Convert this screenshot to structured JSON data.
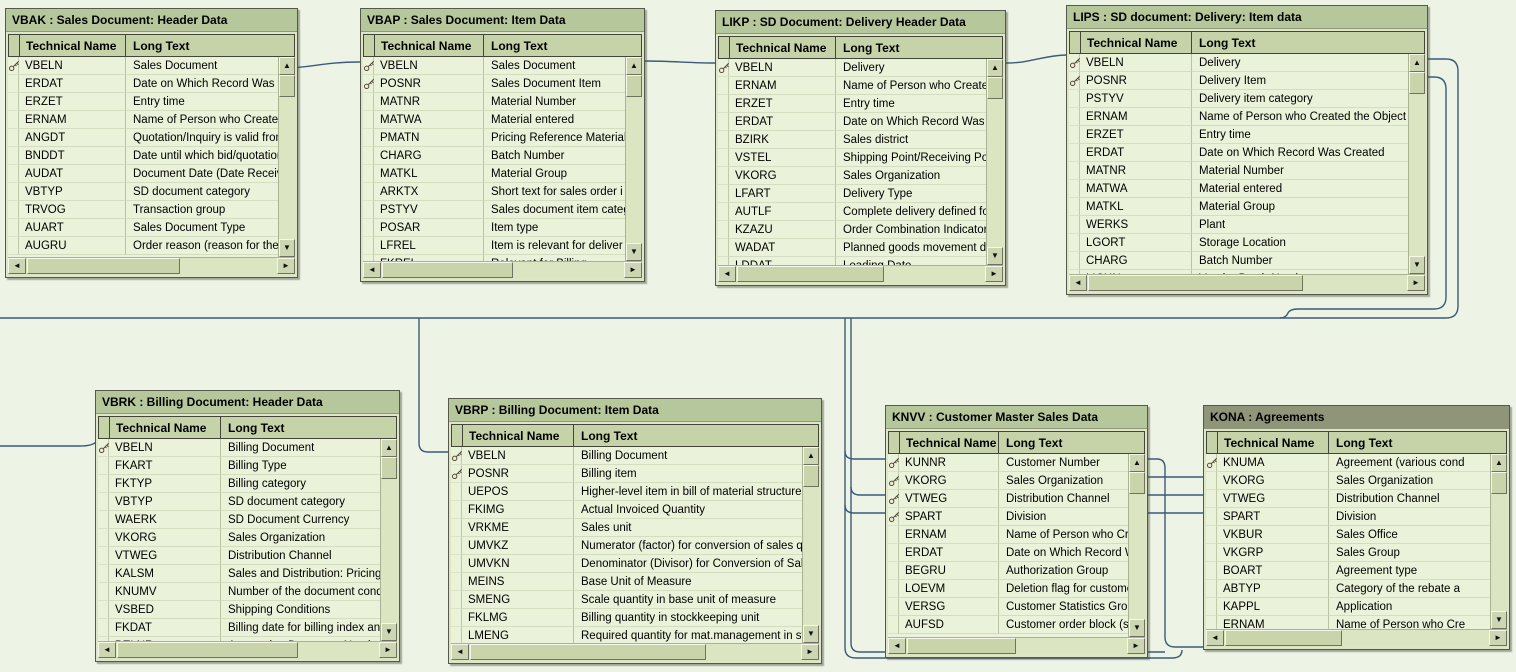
{
  "app": {
    "background": "#edf4e6",
    "wire_color": "#3c5a7a",
    "title_bar_color": "#b6c79b",
    "active_title_bar_color": "#8e9579"
  },
  "tables": [
    {
      "id": "VBAK",
      "title": "VBAK : Sales Document: Header Data",
      "columns": [
        "Technical Name",
        "Long Text"
      ],
      "rows": [
        {
          "name": "VBELN",
          "text": "Sales Document",
          "key": true
        },
        {
          "name": "ERDAT",
          "text": "Date on Which Record Was Cre",
          "key": false
        },
        {
          "name": "ERZET",
          "text": "Entry time",
          "key": false
        },
        {
          "name": "ERNAM",
          "text": "Name of Person who Created t",
          "key": false
        },
        {
          "name": "ANGDT",
          "text": "Quotation/Inquiry is valid from",
          "key": false
        },
        {
          "name": "BNDDT",
          "text": "Date until which bid/quotation i",
          "key": false
        },
        {
          "name": "AUDAT",
          "text": "Document Date (Date Received",
          "key": false
        },
        {
          "name": "VBTYP",
          "text": "SD document category",
          "key": false
        },
        {
          "name": "TRVOG",
          "text": "Transaction group",
          "key": false
        },
        {
          "name": "AUART",
          "text": "Sales Document Type",
          "key": false
        },
        {
          "name": "AUGRU",
          "text": "Order reason (reason for the b",
          "key": false
        }
      ]
    },
    {
      "id": "VBAP",
      "title": "VBAP : Sales Document: Item Data",
      "columns": [
        "Technical Name",
        "Long Text"
      ],
      "rows": [
        {
          "name": "VBELN",
          "text": "Sales Document",
          "key": true
        },
        {
          "name": "POSNR",
          "text": "Sales Document Item",
          "key": true
        },
        {
          "name": "MATNR",
          "text": "Material Number",
          "key": false
        },
        {
          "name": "MATWA",
          "text": "Material entered",
          "key": false
        },
        {
          "name": "PMATN",
          "text": "Pricing Reference Material",
          "key": false
        },
        {
          "name": "CHARG",
          "text": "Batch Number",
          "key": false
        },
        {
          "name": "MATKL",
          "text": "Material Group",
          "key": false
        },
        {
          "name": "ARKTX",
          "text": "Short text for sales order i",
          "key": false
        },
        {
          "name": "PSTYV",
          "text": "Sales document item categ",
          "key": false
        },
        {
          "name": "POSAR",
          "text": "Item type",
          "key": false
        },
        {
          "name": "LFREL",
          "text": "Item is relevant for deliver",
          "key": false
        },
        {
          "name": "FKREL",
          "text": "Relevant for Billing",
          "key": false
        }
      ]
    },
    {
      "id": "LIKP",
      "title": "LIKP : SD Document: Delivery Header Data",
      "columns": [
        "Technical Name",
        "Long Text"
      ],
      "rows": [
        {
          "name": "VBELN",
          "text": "Delivery",
          "key": true
        },
        {
          "name": "ERNAM",
          "text": "Name of Person who Created the",
          "key": false
        },
        {
          "name": "ERZET",
          "text": "Entry time",
          "key": false
        },
        {
          "name": "ERDAT",
          "text": "Date on Which Record Was Crea",
          "key": false
        },
        {
          "name": "BZIRK",
          "text": "Sales district",
          "key": false
        },
        {
          "name": "VSTEL",
          "text": "Shipping Point/Receiving Point",
          "key": false
        },
        {
          "name": "VKORG",
          "text": "Sales Organization",
          "key": false
        },
        {
          "name": "LFART",
          "text": "Delivery Type",
          "key": false
        },
        {
          "name": "AUTLF",
          "text": "Complete delivery defined for ea",
          "key": false
        },
        {
          "name": "KZAZU",
          "text": "Order Combination Indicator",
          "key": false
        },
        {
          "name": "WADAT",
          "text": "Planned goods movement date",
          "key": false
        },
        {
          "name": "LDDAT",
          "text": "Loading Date",
          "key": false
        }
      ]
    },
    {
      "id": "LIPS",
      "title": "LIPS : SD document: Delivery: Item data",
      "columns": [
        "Technical Name",
        "Long Text"
      ],
      "rows": [
        {
          "name": "VBELN",
          "text": "Delivery",
          "key": true
        },
        {
          "name": "POSNR",
          "text": "Delivery Item",
          "key": true
        },
        {
          "name": "PSTYV",
          "text": "Delivery item category",
          "key": false
        },
        {
          "name": "ERNAM",
          "text": "Name of Person who Created the Object",
          "key": false
        },
        {
          "name": "ERZET",
          "text": "Entry time",
          "key": false
        },
        {
          "name": "ERDAT",
          "text": "Date on Which Record Was Created",
          "key": false
        },
        {
          "name": "MATNR",
          "text": "Material Number",
          "key": false
        },
        {
          "name": "MATWA",
          "text": "Material entered",
          "key": false
        },
        {
          "name": "MATKL",
          "text": "Material Group",
          "key": false
        },
        {
          "name": "WERKS",
          "text": "Plant",
          "key": false
        },
        {
          "name": "LGORT",
          "text": "Storage Location",
          "key": false
        },
        {
          "name": "CHARG",
          "text": "Batch Number",
          "key": false
        },
        {
          "name": "LICHN",
          "text": "Vendor Batch Number",
          "key": false
        }
      ]
    },
    {
      "id": "VBRK",
      "title": "VBRK : Billing Document: Header Data",
      "columns": [
        "Technical Name",
        "Long Text"
      ],
      "rows": [
        {
          "name": "VBELN",
          "text": "Billing Document",
          "key": true
        },
        {
          "name": "FKART",
          "text": "Billing Type",
          "key": false
        },
        {
          "name": "FKTYP",
          "text": "Billing category",
          "key": false
        },
        {
          "name": "VBTYP",
          "text": "SD document category",
          "key": false
        },
        {
          "name": "WAERK",
          "text": "SD Document Currency",
          "key": false
        },
        {
          "name": "VKORG",
          "text": "Sales Organization",
          "key": false
        },
        {
          "name": "VTWEG",
          "text": "Distribution Channel",
          "key": false
        },
        {
          "name": "KALSM",
          "text": "Sales and Distribution: Pricing Procedure in Pricin",
          "key": false
        },
        {
          "name": "KNUMV",
          "text": "Number of the document condition",
          "key": false
        },
        {
          "name": "VSBED",
          "text": "Shipping Conditions",
          "key": false
        },
        {
          "name": "FKDAT",
          "text": "Billing date for billing index and printout",
          "key": false
        },
        {
          "name": "BELNR",
          "text": "Accounting Document Number",
          "key": false
        }
      ]
    },
    {
      "id": "VBRP",
      "title": "VBRP : Billing Document: Item Data",
      "columns": [
        "Technical Name",
        "Long Text"
      ],
      "rows": [
        {
          "name": "VBELN",
          "text": "Billing Document",
          "key": true
        },
        {
          "name": "POSNR",
          "text": "Billing item",
          "key": true
        },
        {
          "name": "UEPOS",
          "text": "Higher-level item in bill of material structures",
          "key": false
        },
        {
          "name": "FKIMG",
          "text": "Actual Invoiced Quantity",
          "key": false
        },
        {
          "name": "VRKME",
          "text": "Sales unit",
          "key": false
        },
        {
          "name": "UMVKZ",
          "text": "Numerator (factor) for conversion of sales qua",
          "key": false
        },
        {
          "name": "UMVKN",
          "text": "Denominator (Divisor) for Conversion of Sales (",
          "key": false
        },
        {
          "name": "MEINS",
          "text": "Base Unit of Measure",
          "key": false
        },
        {
          "name": "SMENG",
          "text": "Scale quantity in base unit of measure",
          "key": false
        },
        {
          "name": "FKLMG",
          "text": "Billing quantity in stockkeeping unit",
          "key": false
        },
        {
          "name": "LMENG",
          "text": "Required quantity for mat.management in stoc",
          "key": false
        }
      ]
    },
    {
      "id": "KNVV",
      "title": "KNVV : Customer Master Sales Data",
      "columns": [
        "Technical Name",
        "Long Text"
      ],
      "rows": [
        {
          "name": "KUNNR",
          "text": "Customer Number",
          "key": true
        },
        {
          "name": "VKORG",
          "text": "Sales Organization",
          "key": true
        },
        {
          "name": "VTWEG",
          "text": "Distribution Channel",
          "key": true
        },
        {
          "name": "SPART",
          "text": "Division",
          "key": true
        },
        {
          "name": "ERNAM",
          "text": "Name of Person who Create",
          "key": false
        },
        {
          "name": "ERDAT",
          "text": "Date on Which Record Was",
          "key": false
        },
        {
          "name": "BEGRU",
          "text": "Authorization Group",
          "key": false
        },
        {
          "name": "LOEVM",
          "text": "Deletion flag for customer (s",
          "key": false
        },
        {
          "name": "VERSG",
          "text": "Customer Statistics Group",
          "key": false
        },
        {
          "name": "AUFSD",
          "text": "Customer order block (sales",
          "key": false
        }
      ]
    },
    {
      "id": "KONA",
      "title": "KONA : Agreements",
      "active": true,
      "columns": [
        "Technical Name",
        "Long Text"
      ],
      "rows": [
        {
          "name": "KNUMA",
          "text": "Agreement (various cond",
          "key": true
        },
        {
          "name": "VKORG",
          "text": "Sales Organization",
          "key": false
        },
        {
          "name": "VTWEG",
          "text": "Distribution Channel",
          "key": false
        },
        {
          "name": "SPART",
          "text": "Division",
          "key": false
        },
        {
          "name": "VKBUR",
          "text": "Sales Office",
          "key": false
        },
        {
          "name": "VKGRP",
          "text": "Sales Group",
          "key": false
        },
        {
          "name": "BOART",
          "text": "Agreement type",
          "key": false
        },
        {
          "name": "ABTYP",
          "text": "Category of the rebate a",
          "key": false
        },
        {
          "name": "KAPPL",
          "text": "Application",
          "key": false
        },
        {
          "name": "ERNAM",
          "text": "Name of Person who Cre",
          "key": false
        }
      ]
    }
  ],
  "relationships": [
    {
      "from": "VBAK.VBELN",
      "to": "VBAP.VBELN"
    },
    {
      "from": "VBAP.VBELN",
      "to": "LIKP.VBELN"
    },
    {
      "from": "LIKP.VBELN",
      "to": "LIPS.VBELN"
    },
    {
      "from": "LIPS.VBELN",
      "to": "VBRK.VBELN"
    },
    {
      "from": "LIPS.POSNR",
      "to": "VBRP.VBELN"
    },
    {
      "from": "LIPS",
      "to": "KNVV.KUNNR"
    },
    {
      "from": "LIPS",
      "to": "KNVV.VTWEG"
    },
    {
      "from": "LIPS",
      "to": "KNVV.SPART"
    },
    {
      "from": "KNVV.KUNNR",
      "to": "KONA"
    },
    {
      "from": "KNVV.VKORG",
      "to": "KONA.VKORG"
    },
    {
      "from": "KNVV.VTWEG",
      "to": "KONA.VTWEG"
    },
    {
      "from": "KNVV.SPART",
      "to": "KONA.SPART"
    }
  ]
}
